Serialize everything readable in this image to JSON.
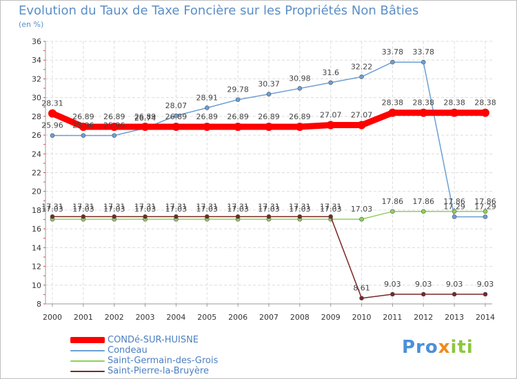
{
  "title": "Evolution du Taux de Taxe Foncière sur les Propriétés Non Bâties",
  "unit": "(en %)",
  "logo": {
    "p1": "Pro",
    "x": "x",
    "i": "iti"
  },
  "chart_data": {
    "type": "line",
    "x": [
      2000,
      2001,
      2002,
      2003,
      2004,
      2005,
      2006,
      2007,
      2008,
      2009,
      2010,
      2011,
      2012,
      2013,
      2014
    ],
    "xticks": [
      "2000",
      "2001",
      "2002",
      "2003",
      "2004",
      "2005",
      "2006",
      "2007",
      "2008",
      "2009",
      "2010",
      "2011",
      "2012",
      "2013",
      "2014"
    ],
    "ylim": [
      8,
      36
    ],
    "yticks": [
      8,
      10,
      12,
      14,
      16,
      18,
      20,
      22,
      24,
      26,
      28,
      30,
      32,
      34,
      36
    ],
    "grid": true,
    "series": [
      {
        "name": "CONDé-SUR-HUISNE",
        "color": "#ff0000",
        "thick": true,
        "values": [
          28.31,
          26.89,
          26.89,
          26.89,
          26.89,
          26.89,
          26.89,
          26.89,
          26.89,
          27.07,
          27.07,
          28.38,
          28.38,
          28.38,
          28.38
        ],
        "labels": [
          "28.31",
          "26.89",
          "26.89",
          "26.89",
          "26.89",
          "26.89",
          "26.89",
          "26.89",
          "26.89",
          "27.07",
          "27.07",
          "28.38",
          "28.38",
          "28.38",
          "28.38"
        ]
      },
      {
        "name": "Condeau",
        "color": "#6b9fd4",
        "thick": false,
        "values": [
          25.96,
          25.96,
          25.96,
          26.74,
          28.07,
          28.91,
          29.78,
          30.37,
          30.98,
          31.6,
          32.22,
          33.78,
          33.78,
          17.29,
          17.29
        ],
        "labels": [
          "25.96",
          "25.96",
          "25.96",
          "26.74",
          "28.07",
          "28.91",
          "29.78",
          "30.37",
          "30.98",
          "31.6",
          "32.22",
          "33.78",
          "33.78",
          "17.29",
          "17.29"
        ]
      },
      {
        "name": "Saint-Germain-des-Grois",
        "color": "#8fd15a",
        "thick": false,
        "values": [
          17.03,
          17.03,
          17.03,
          17.03,
          17.03,
          17.03,
          17.03,
          17.03,
          17.03,
          17.03,
          17.03,
          17.86,
          17.86,
          17.86,
          17.86
        ],
        "labels": [
          "17.03",
          "17.03",
          "17.03",
          "17.03",
          "17.03",
          "17.03",
          "17.03",
          "17.03",
          "17.03",
          "17.03",
          "17.03",
          "17.86",
          "17.86",
          "17.86",
          "17.86"
        ]
      },
      {
        "name": "Saint-Pierre-la-Bruyère",
        "color": "#7a2626",
        "thick": false,
        "values": [
          17.31,
          17.31,
          17.31,
          17.31,
          17.31,
          17.31,
          17.31,
          17.31,
          17.31,
          17.31,
          8.61,
          9.03,
          9.03,
          9.03,
          9.03
        ],
        "labels": [
          "17.31",
          "17.31",
          "17.31",
          "17.31",
          "17.31",
          "17.31",
          "17.31",
          "17.31",
          "17.31",
          "17.31",
          "8.61",
          "9.03",
          "9.03",
          "9.03",
          "9.03"
        ]
      }
    ]
  }
}
